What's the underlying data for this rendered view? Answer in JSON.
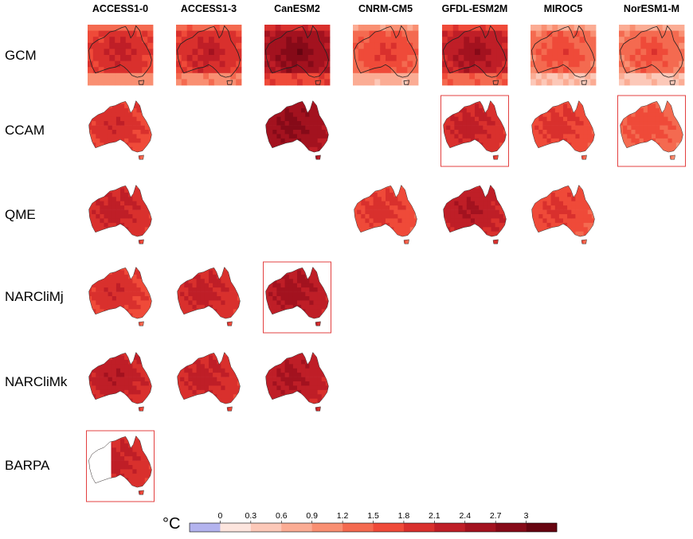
{
  "chart_data": {
    "type": "heatmap",
    "unit": "°C",
    "columns": [
      "ACCESS1-0",
      "ACCESS1-3",
      "CanESM2",
      "CNRM-CM5",
      "GFDL-ESM2M",
      "MIROC5",
      "NorESM1-M"
    ],
    "rows": [
      "GCM",
      "CCAM",
      "QME",
      "NARCliMj",
      "NARCliMk",
      "BARPA"
    ],
    "cells": [
      {
        "row": "GCM",
        "col": "ACCESS1-0",
        "level": 7.4,
        "style": "grid"
      },
      {
        "row": "GCM",
        "col": "ACCESS1-3",
        "level": 7.6,
        "style": "grid"
      },
      {
        "row": "GCM",
        "col": "CanESM2",
        "level": 9.6,
        "style": "grid"
      },
      {
        "row": "GCM",
        "col": "CNRM-CM5",
        "level": 6.2,
        "style": "grid"
      },
      {
        "row": "GCM",
        "col": "GFDL-ESM2M",
        "level": 8.6,
        "style": "grid"
      },
      {
        "row": "GCM",
        "col": "MIROC5",
        "level": 5.8,
        "style": "grid"
      },
      {
        "row": "GCM",
        "col": "NorESM1-M",
        "level": 5.6,
        "style": "grid"
      },
      {
        "row": "CCAM",
        "col": "ACCESS1-0",
        "level": 7.0,
        "style": "land"
      },
      {
        "row": "CCAM",
        "col": "CanESM2",
        "level": 9.4,
        "style": "land"
      },
      {
        "row": "CCAM",
        "col": "GFDL-ESM2M",
        "level": 7.6,
        "style": "land",
        "boxed": true
      },
      {
        "row": "CCAM",
        "col": "MIROC5",
        "level": 6.6,
        "style": "land"
      },
      {
        "row": "CCAM",
        "col": "NorESM1-M",
        "level": 5.8,
        "style": "land",
        "boxed": true
      },
      {
        "row": "QME",
        "col": "ACCESS1-0",
        "level": 7.6,
        "style": "land"
      },
      {
        "row": "QME",
        "col": "CNRM-CM5",
        "level": 6.6,
        "style": "land"
      },
      {
        "row": "QME",
        "col": "GFDL-ESM2M",
        "level": 8.2,
        "style": "land"
      },
      {
        "row": "QME",
        "col": "MIROC5",
        "level": 6.4,
        "style": "land"
      },
      {
        "row": "NARCliMj",
        "col": "ACCESS1-0",
        "level": 7.0,
        "style": "land"
      },
      {
        "row": "NARCliMj",
        "col": "ACCESS1-3",
        "level": 7.6,
        "style": "land"
      },
      {
        "row": "NARCliMj",
        "col": "CanESM2",
        "level": 8.6,
        "style": "land",
        "boxed": true
      },
      {
        "row": "NARCliMk",
        "col": "ACCESS1-0",
        "level": 8.0,
        "style": "land"
      },
      {
        "row": "NARCliMk",
        "col": "ACCESS1-3",
        "level": 7.6,
        "style": "land"
      },
      {
        "row": "NARCliMk",
        "col": "CanESM2",
        "level": 8.4,
        "style": "land"
      },
      {
        "row": "BARPA",
        "col": "ACCESS1-0",
        "level": 7.6,
        "style": "partial",
        "boxed": true
      }
    ],
    "colorbar": {
      "ticks": [
        "0",
        "0.3",
        "0.6",
        "0.9",
        "1.2",
        "1.5",
        "1.8",
        "2.1",
        "2.4",
        "2.7",
        "3"
      ],
      "tick_values": [
        0,
        0.3,
        0.6,
        0.9,
        1.2,
        1.5,
        1.8,
        2.1,
        2.4,
        2.7,
        3
      ],
      "bins": 12,
      "colors": [
        "#b3b3ee",
        "#fde5de",
        "#fcc8b8",
        "#fbac94",
        "#f98f72",
        "#f46a50",
        "#ef4a39",
        "#d9302d",
        "#bf1e27",
        "#a3121f",
        "#860a18",
        "#660410"
      ]
    }
  }
}
